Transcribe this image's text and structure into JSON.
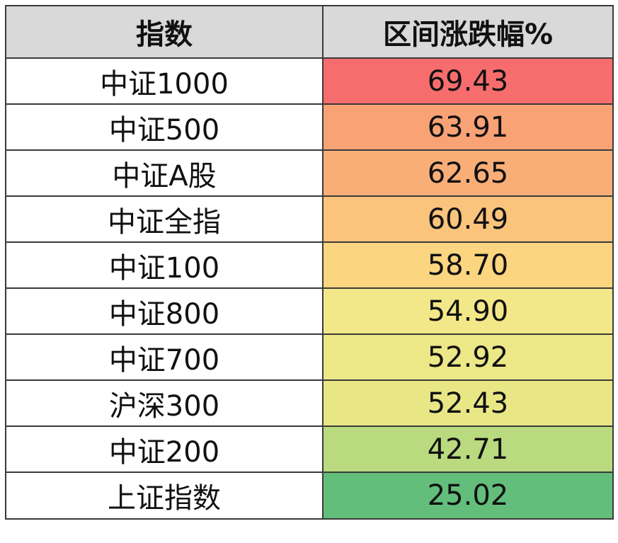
{
  "table": {
    "headers": [
      "指数",
      "区间涨跌幅%"
    ],
    "rows": [
      {
        "name": "中证1000",
        "value": "69.43",
        "color": "#f76d6d"
      },
      {
        "name": "中证500",
        "value": "63.91",
        "color": "#f8a275"
      },
      {
        "name": "中证A股",
        "value": "62.65",
        "color": "#f9ae78"
      },
      {
        "name": "中证全指",
        "value": "60.49",
        "color": "#fac47c"
      },
      {
        "name": "中证100",
        "value": "58.70",
        "color": "#fbd57f"
      },
      {
        "name": "中证800",
        "value": "54.90",
        "color": "#f3e889"
      },
      {
        "name": "中证700",
        "value": "52.92",
        "color": "#ede887"
      },
      {
        "name": "沪深300",
        "value": "52.43",
        "color": "#e9e686"
      },
      {
        "name": "中证200",
        "value": "42.71",
        "color": "#b9da7f"
      },
      {
        "name": "上证指数",
        "value": "25.02",
        "color": "#63be7b"
      }
    ]
  }
}
